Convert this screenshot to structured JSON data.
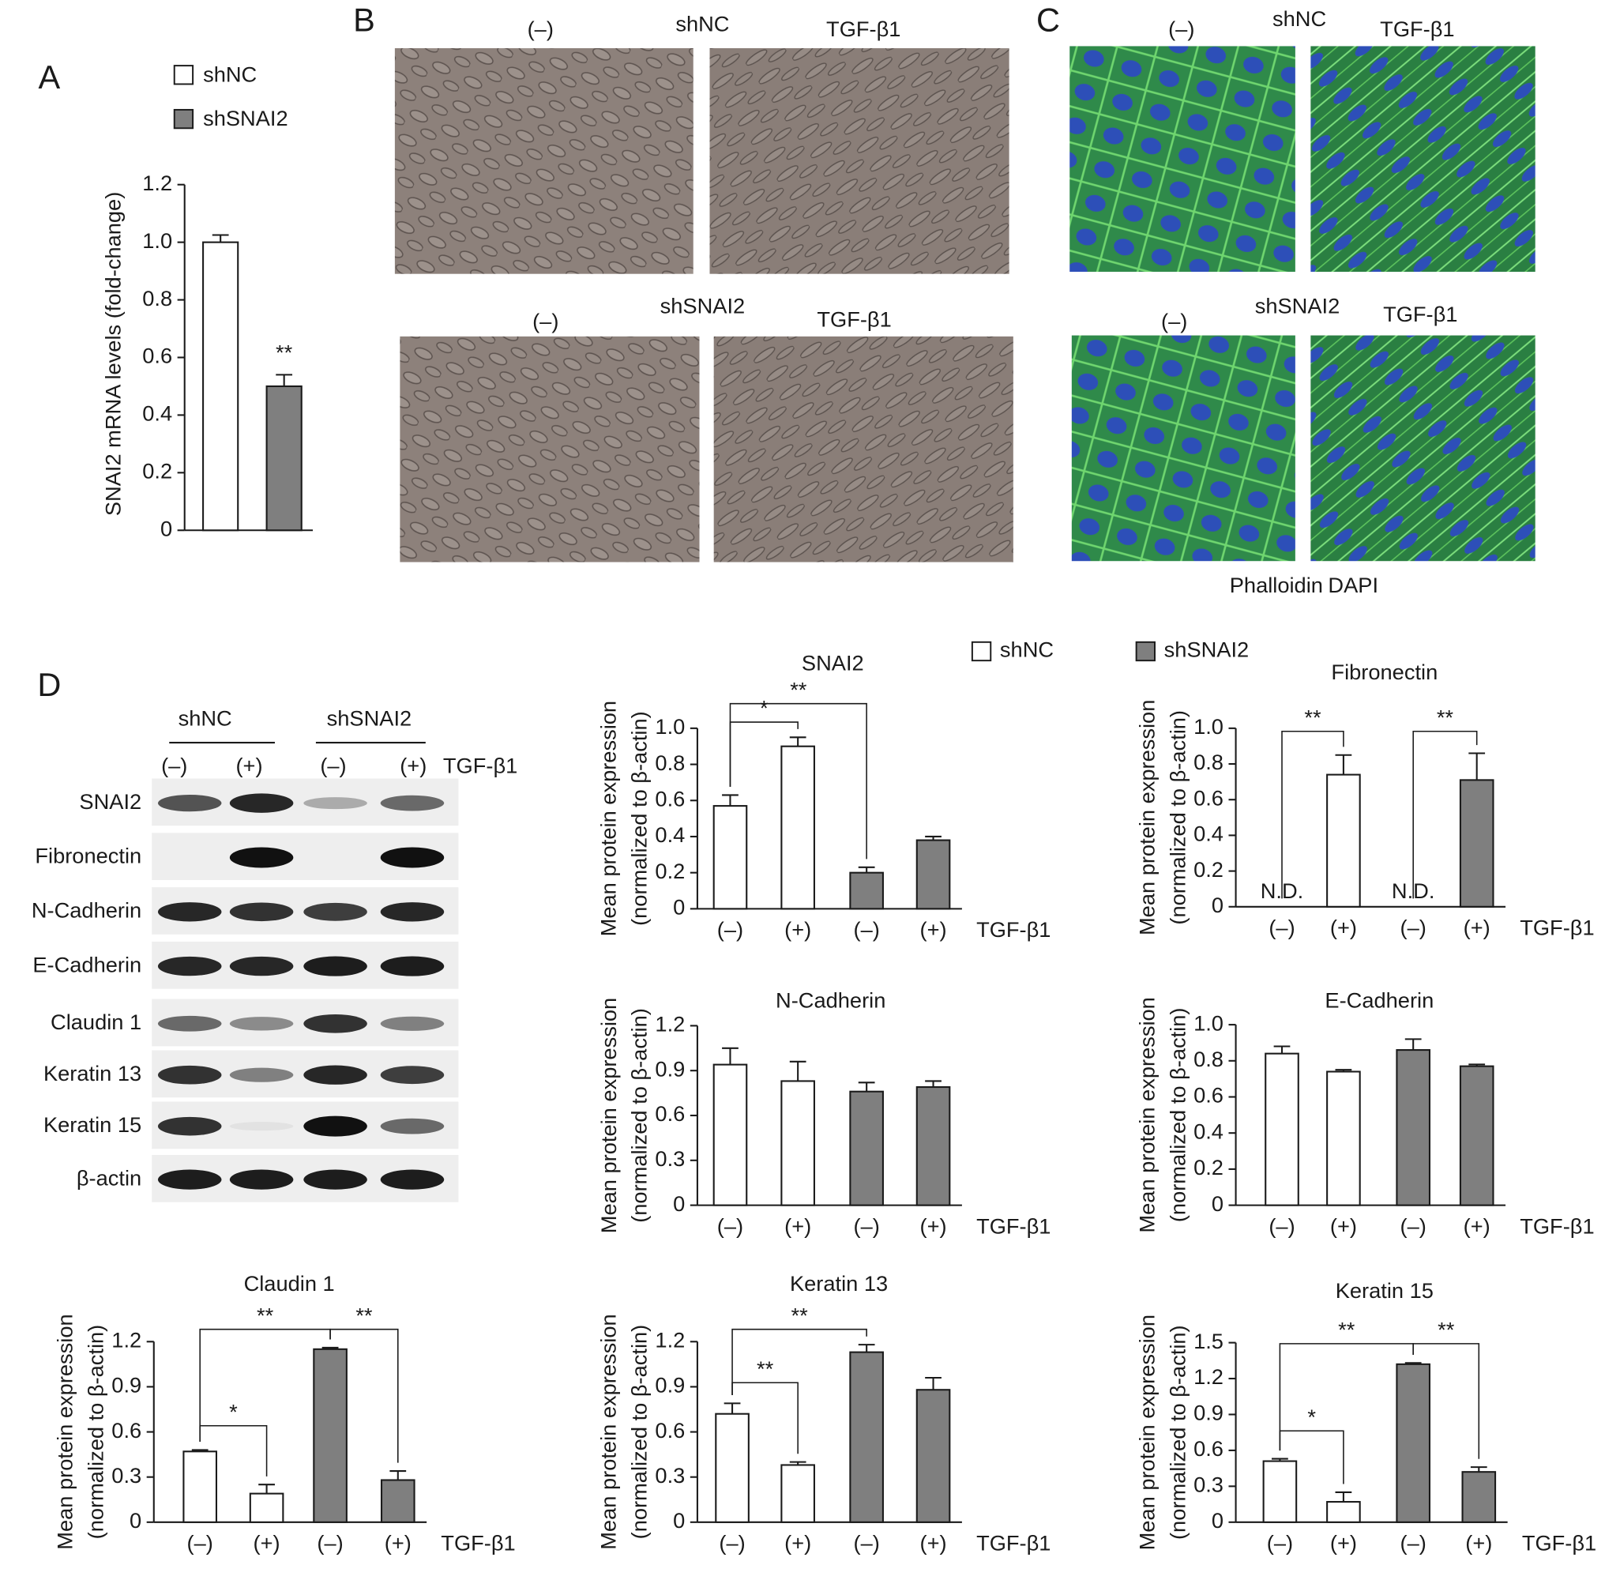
{
  "panel_labels": [
    "A",
    "B",
    "C",
    "D"
  ],
  "brightfield": {
    "rows": [
      {
        "group": "shNC",
        "left": "(–)",
        "right": "TGF-β1"
      },
      {
        "group": "shSNAI2",
        "left": "(–)",
        "right": "TGF-β1"
      }
    ]
  },
  "fluorescence": {
    "rows": [
      {
        "group": "shNC",
        "left": "(–)",
        "right": "TGF-β1"
      },
      {
        "group": "shSNAI2",
        "left": "(–)",
        "right": "TGF-β1"
      }
    ],
    "stain": [
      {
        "name": "Phalloidin",
        "color": "#3fbf3f"
      },
      {
        "name": "DAPI",
        "color": "#1f2fe0"
      }
    ]
  },
  "western": {
    "groups": [
      "shNC",
      "shSNAI2"
    ],
    "lanes": [
      "(–)",
      "(+)",
      "(–)",
      "(+)"
    ],
    "treatment": "TGF-β1",
    "rows": [
      "SNAI2",
      "Fibronectin",
      "N-Cadherin",
      "E-Cadherin",
      "Claudin 1",
      "Keratin 13",
      "Keratin 15",
      "β-actin"
    ]
  },
  "chart_data": [
    {
      "type": "bar",
      "ylabel": "SNAI2 mRNA levels (fold-change)",
      "series": [
        {
          "name": "shNC",
          "color": "#ffffff",
          "values": [
            1.0
          ],
          "errors": [
            0.025
          ]
        },
        {
          "name": "shSNAI2",
          "color": "#7f7f7f",
          "values": [
            0.5
          ],
          "errors": [
            0.04
          ]
        }
      ],
      "annotations": [
        "**"
      ],
      "ylim": [
        0,
        1.2
      ],
      "yticks": [
        0,
        0.2,
        0.4,
        0.6,
        0.8,
        {
          "value": 1,
          "label": "1.0"
        },
        1.2
      ]
    },
    {
      "type": "bar",
      "title": "SNAI2",
      "ylabel": [
        "Mean protein expression",
        "(normalized to β-actin)"
      ],
      "categories": [
        "(–)",
        "(+)",
        "(–)",
        "(+)"
      ],
      "xlabel": "TGF-β1",
      "values": [
        0.57,
        0.9,
        0.2,
        0.38
      ],
      "errors": [
        0.06,
        0.05,
        0.03,
        0.02
      ],
      "colors": [
        "#ffffff",
        "#ffffff",
        "#7f7f7f",
        "#7f7f7f"
      ],
      "legend": [
        {
          "name": "shNC",
          "color": "#ffffff"
        },
        {
          "name": "shSNAI2",
          "color": "#7f7f7f"
        }
      ],
      "annotations": [
        "*",
        "**"
      ],
      "ylim": [
        0,
        1
      ],
      "yticks": [
        0,
        0.2,
        0.4,
        0.6,
        0.8,
        {
          "value": 1,
          "label": "1.0"
        }
      ]
    },
    {
      "type": "bar",
      "title": "Fibronectin",
      "ylabel": [
        "Mean protein expression",
        "(normalized to β-actin)"
      ],
      "categories": [
        "(–)",
        "(+)",
        "(–)",
        "(+)"
      ],
      "xlabel": "TGF-β1",
      "values": [
        null,
        0.74,
        null,
        0.71
      ],
      "errors": [
        null,
        0.11,
        null,
        0.15
      ],
      "na_label": "N.D.",
      "colors": [
        "#ffffff",
        "#ffffff",
        "#7f7f7f",
        "#7f7f7f"
      ],
      "annotations": [
        "**",
        "**"
      ],
      "ylim": [
        0,
        1
      ],
      "yticks": [
        0,
        0.2,
        0.4,
        0.6,
        0.8,
        {
          "value": 1,
          "label": "1.0"
        }
      ]
    },
    {
      "type": "bar",
      "title": "N-Cadherin",
      "ylabel": [
        "Mean protein expression",
        "(normalized to β-actin)"
      ],
      "categories": [
        "(–)",
        "(+)",
        "(–)",
        "(+)"
      ],
      "xlabel": "TGF-β1",
      "values": [
        0.94,
        0.83,
        0.76,
        0.79
      ],
      "errors": [
        0.11,
        0.13,
        0.06,
        0.04
      ],
      "colors": [
        "#ffffff",
        "#ffffff",
        "#7f7f7f",
        "#7f7f7f"
      ],
      "annotations": [],
      "ylim": [
        0,
        1.2
      ],
      "yticks": [
        0,
        0.3,
        0.6,
        0.9,
        1.2
      ]
    },
    {
      "type": "bar",
      "title": "E-Cadherin",
      "ylabel": [
        "Mean protein expression",
        "(normalized to β-actin)"
      ],
      "categories": [
        "(–)",
        "(+)",
        "(–)",
        "(+)"
      ],
      "xlabel": "TGF-β1",
      "values": [
        0.84,
        0.74,
        0.86,
        0.77
      ],
      "errors": [
        0.04,
        0.01,
        0.06,
        0.01
      ],
      "colors": [
        "#ffffff",
        "#ffffff",
        "#7f7f7f",
        "#7f7f7f"
      ],
      "annotations": [],
      "ylim": [
        0,
        1
      ],
      "yticks": [
        0,
        0.2,
        0.4,
        0.6,
        0.8,
        {
          "value": 1,
          "label": "1.0"
        }
      ]
    },
    {
      "type": "bar",
      "title": "Claudin 1",
      "ylabel": [
        "Mean protein expression",
        "(normalized to β-actin)"
      ],
      "categories": [
        "(–)",
        "(+)",
        "(–)",
        "(+)"
      ],
      "xlabel": "TGF-β1",
      "values": [
        0.47,
        0.19,
        1.15,
        0.28
      ],
      "errors": [
        0.01,
        0.06,
        0.01,
        0.06
      ],
      "colors": [
        "#ffffff",
        "#ffffff",
        "#7f7f7f",
        "#7f7f7f"
      ],
      "annotations": [
        "**",
        "*",
        "**"
      ],
      "ylim": [
        0,
        1.2
      ],
      "yticks": [
        0,
        0.3,
        0.6,
        0.9,
        1.2
      ]
    },
    {
      "type": "bar",
      "title": "Keratin 13",
      "ylabel": [
        "Mean protein expression",
        "(normalized to β-actin)"
      ],
      "categories": [
        "(–)",
        "(+)",
        "(–)",
        "(+)"
      ],
      "xlabel": "TGF-β1",
      "values": [
        0.72,
        0.38,
        1.13,
        0.88
      ],
      "errors": [
        0.07,
        0.02,
        0.05,
        0.08
      ],
      "colors": [
        "#ffffff",
        "#ffffff",
        "#7f7f7f",
        "#7f7f7f"
      ],
      "annotations": [
        "**",
        "**"
      ],
      "ylim": [
        0,
        1.2
      ],
      "yticks": [
        0,
        0.3,
        0.6,
        0.9,
        1.2
      ]
    },
    {
      "type": "bar",
      "title": "Keratin 15",
      "ylabel": [
        "Mean protein expression",
        "(normalized to β-actin)"
      ],
      "categories": [
        "(–)",
        "(+)",
        "(–)",
        "(+)"
      ],
      "xlabel": "TGF-β1",
      "values": [
        0.51,
        0.17,
        1.32,
        0.42
      ],
      "errors": [
        0.02,
        0.08,
        0.01,
        0.04
      ],
      "colors": [
        "#ffffff",
        "#ffffff",
        "#7f7f7f",
        "#7f7f7f"
      ],
      "annotations": [
        "**",
        "*",
        "**"
      ],
      "ylim": [
        0,
        1.5
      ],
      "yticks": [
        0,
        0.3,
        0.6,
        0.9,
        1.2,
        1.5
      ]
    }
  ]
}
